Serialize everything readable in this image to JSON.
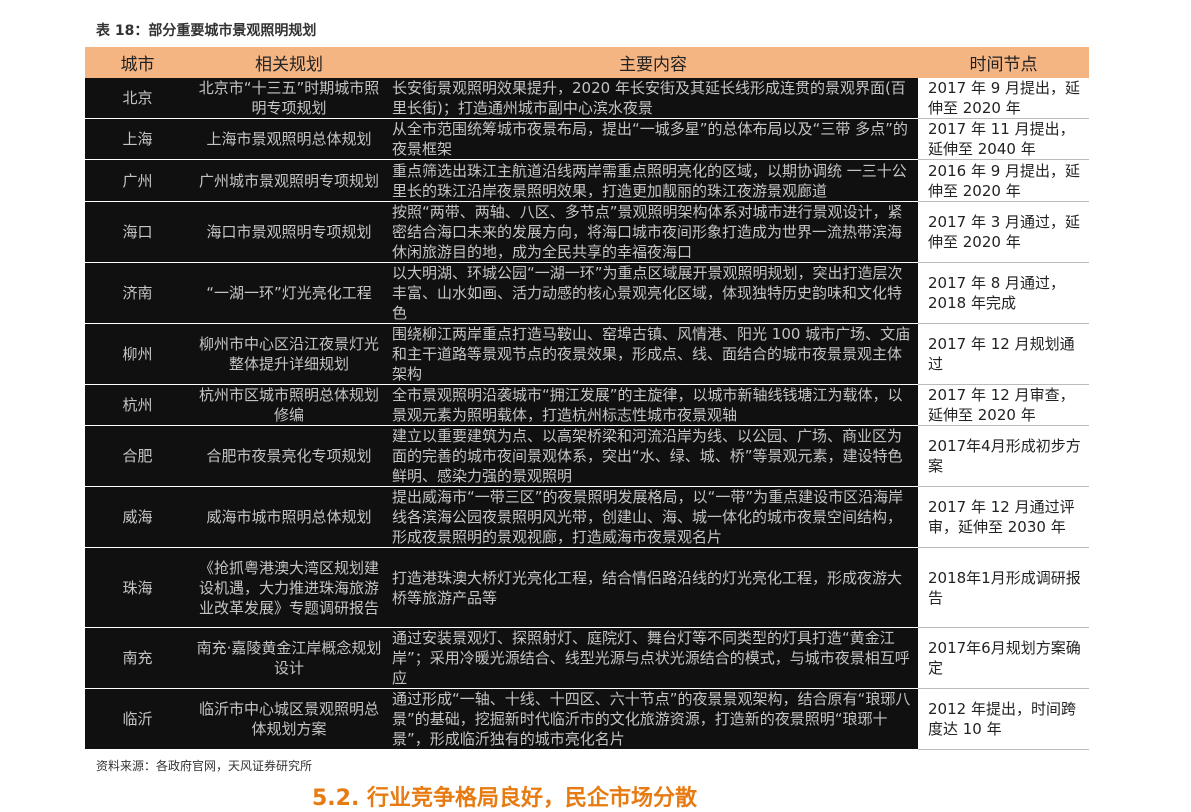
{
  "title": "表 18：部分重要城市景观照明规划",
  "table": {
    "header": [
      "城市",
      "相关规划",
      "主要内容",
      "时间节点"
    ],
    "rows": [
      [
        "北京",
        "北京市“十三五”时期城市照明专项规划",
        "长安街景观照明效果提升，2020 年长安街及其延长线形成连贯的景观界面(百里长街)；打造通州城市副中心滨水夜景",
        "2017 年 9 月提出，延伸至 2020 年"
      ],
      [
        "上海",
        "上海市景观照明总体规划",
        "从全市范围统筹城市夜景布局，提出“一城多星”的总体布局以及“三带 多点”的夜景框架",
        "2017 年 11 月提出，延伸至 2040 年"
      ],
      [
        "广州",
        "广州城市景观照明专项规划",
        "重点筛选出珠江主航道沿线两岸需重点照明亮化的区域，以期协调统 一三十公里长的珠江沿岸夜景照明效果，打造更加靓丽的珠江夜游景观廊道",
        "2016 年 9 月提出，延伸至 2020 年"
      ],
      [
        "海口",
        "海口市景观照明专项规划",
        "按照“两带、两轴、八区、多节点”景观照明架构体系对城市进行景观设计，紧密结合海口未来的发展方向，将海口城市夜间形象打造成为世界一流热带滨海休闲旅游目的地，成为全民共享的幸福夜海口",
        "2017 年 3 月通过，延伸至 2020 年"
      ],
      [
        "济南",
        "“一湖一环”灯光亮化工程",
        "以大明湖、环城公园“一湖一环”为重点区域展开景观照明规划，突出打造层次丰富、山水如画、活力动感的核心景观亮化区域，体现独特历史韵味和文化特色",
        "2017 年 8 月通过，2018 年完成"
      ],
      [
        "柳州",
        "柳州市中心区沿江夜景灯光整体提升详细规划",
        "围绕柳江两岸重点打造马鞍山、窑埠古镇、风情港、阳光 100 城市广场、文庙和主干道路等景观节点的夜景效果，形成点、线、面结合的城市夜景景观主体架构",
        "2017 年 12 月规划通过"
      ],
      [
        "杭州",
        "杭州市区城市照明总体规划修编",
        "全市景观照明沿袭城市“拥江发展”的主旋律，以城市新轴线钱塘江为载体，以景观元素为照明载体，打造杭州标志性城市夜景观轴",
        "2017 年 12 月审查，延伸至 2020 年"
      ],
      [
        "合肥",
        "合肥市夜景亮化专项规划",
        "建立以重要建筑为点、以高架桥梁和河流沿岸为线、以公园、广场、商业区为面的完善的城市夜间景观体系，突出“水、绿、城、桥”等景观元素，建设特色鲜明、感染力强的景观照明",
        "2017年4月形成初步方案"
      ],
      [
        "威海",
        "威海市城市照明总体规划",
        "提出威海市“一带三区”的夜景照明发展格局，以“一带”为重点建设市区沿海岸线各滨海公园夜景照明风光带，创建山、海、城一体化的城市夜景空间结构，形成夜景照明的景观视廊，打造威海市夜景观名片",
        "2017 年 12 月通过评审，延伸至 2030 年"
      ],
      [
        "珠海",
        "《抢抓粤港澳大湾区规划建设机遇，大力推进珠海旅游业改革发展》专题调研报告",
        "打造港珠澳大桥灯光亮化工程，结合情侣路沿线的灯光亮化工程，形成夜游大桥等旅游产品等",
        "2018年1月形成调研报告"
      ],
      [
        "南充",
        "南充·嘉陵黄金江岸概念规划设计",
        "通过安装景观灯、探照射灯、庭院灯、舞台灯等不同类型的灯具打造“黄金江岸”；采用冷暖光源结合、线型光源与点状光源结合的模式，与城市夜景相互呼应",
        "2017年6月规划方案确定"
      ],
      [
        "临沂",
        "临沂市中心城区景观照明总体规划方案",
        "通过形成“一轴、十线、十四区、六十节点”的夜景景观架构，结合原有“琅琊八景”的基础，挖掘新时代临沂市的文化旅游资源，打造新的夜景照明“琅琊十景”，形成临沂独有的城市亮化名片",
        "2012 年提出，时间跨度达 10 年"
      ]
    ]
  },
  "source": "资料来源：各政府官网，天风证券研究所",
  "next_heading": "5.2. 行业竞争格局良好，民企市场分散"
}
